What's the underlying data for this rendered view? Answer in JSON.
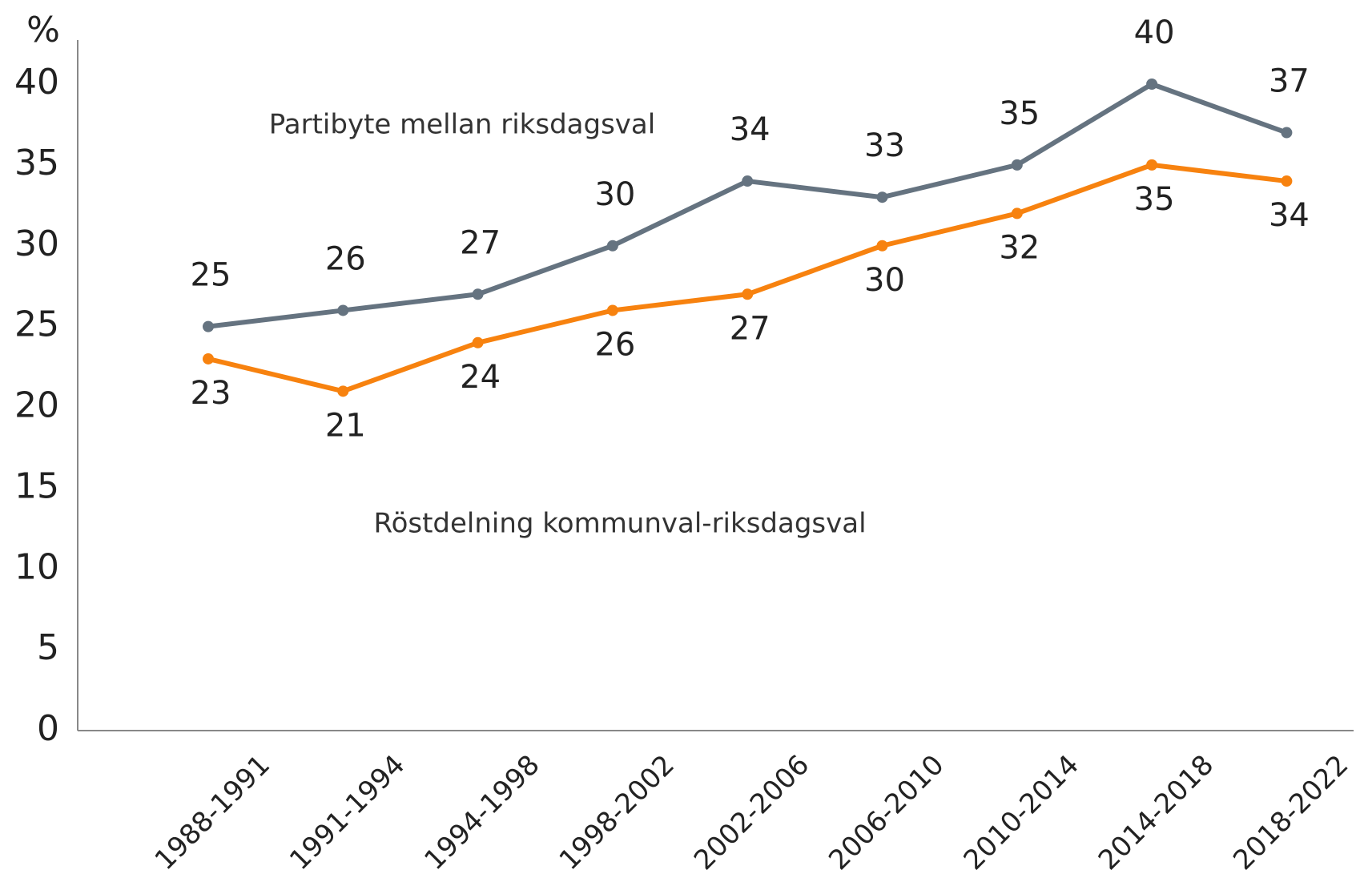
{
  "chart_data": {
    "type": "line",
    "y_label": "%",
    "categories": [
      "1988-1991",
      "1991-1994",
      "1994-1998",
      "1998-2002",
      "2002-2006",
      "2006-2010",
      "2010-2014",
      "2014-2018",
      "2018-2022"
    ],
    "series": [
      {
        "name": "Partibyte mellan riksdagsval",
        "color": "#657380",
        "values": [
          25,
          26,
          27,
          30,
          34,
          33,
          35,
          40,
          37
        ]
      },
      {
        "name": "Röstdelning kommunval-riksdagsval",
        "color": "#f7820f",
        "values": [
          23,
          21,
          24,
          26,
          27,
          30,
          32,
          35,
          34
        ]
      }
    ],
    "ylim": [
      0,
      40
    ],
    "yticks": [
      0,
      5,
      10,
      15,
      20,
      25,
      30,
      35,
      40
    ],
    "grid": false
  }
}
